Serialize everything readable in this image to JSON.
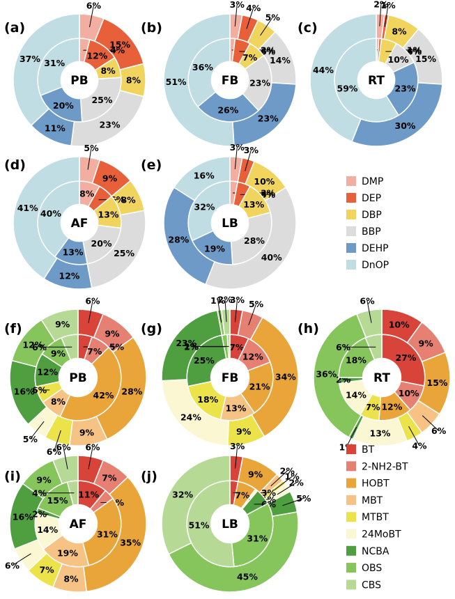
{
  "legends": [
    {
      "items": [
        {
          "name": "DMP",
          "color": "#f2aea0"
        },
        {
          "name": "DEP",
          "color": "#e8603a"
        },
        {
          "name": "DBP",
          "color": "#f1d45e"
        },
        {
          "name": "BBP",
          "color": "#dcdcdc"
        },
        {
          "name": "DEHP",
          "color": "#6e9ac8"
        },
        {
          "name": "DnOP",
          "color": "#bfdde3"
        }
      ]
    },
    {
      "items": [
        {
          "name": "BT",
          "color": "#d9443a"
        },
        {
          "name": "2-NH2-BT",
          "color": "#e68072"
        },
        {
          "name": "HOBT",
          "color": "#e9a53a"
        },
        {
          "name": "MBT",
          "color": "#f6c384"
        },
        {
          "name": "MTBT",
          "color": "#ece24a"
        },
        {
          "name": "24MoBT",
          "color": "#fbf7d3"
        },
        {
          "name": "NCBA",
          "color": "#4f9e3f"
        },
        {
          "name": "OBS",
          "color": "#85c55b"
        },
        {
          "name": "CBS",
          "color": "#b6da96"
        }
      ]
    }
  ],
  "chart_data": [
    {
      "type": "pie",
      "panel": "(a)",
      "center_label": "PB",
      "legend": 0,
      "inner": [
        4,
        12,
        8,
        25,
        20,
        31
      ],
      "outer": [
        6,
        15,
        8,
        23,
        11,
        37
      ],
      "inner_labels": [
        "4%",
        "12%",
        "8%",
        "25%",
        "20%",
        "31%"
      ],
      "outer_labels": [
        "6%",
        "15%",
        "8%",
        "23%",
        "11%",
        "37%"
      ]
    },
    {
      "type": "pie",
      "panel": "(b)",
      "center_label": "FB",
      "legend": 0,
      "inner": [
        2,
        6,
        7,
        23,
        26,
        36
      ],
      "outer": [
        3,
        4,
        5,
        14,
        23,
        51
      ],
      "inner_labels": [
        "2%",
        "6%",
        "7%",
        "23%",
        "26%",
        "36%"
      ],
      "outer_labels": [
        "3%",
        "4%",
        "5%",
        "14%",
        "23%",
        "51%"
      ]
    },
    {
      "type": "pie",
      "panel": "(c)",
      "center_label": "RT",
      "legend": 0,
      "inner": [
        1,
        1,
        6,
        10,
        23,
        59
      ],
      "outer": [
        2,
        1,
        8,
        15,
        30,
        44
      ],
      "inner_labels": [
        "1%",
        "1%",
        "6%",
        "10%",
        "23%",
        "59%"
      ],
      "outer_labels": [
        "2%",
        "1%",
        "8%",
        "15%",
        "30%",
        "44%"
      ]
    },
    {
      "type": "pie",
      "panel": "(d)",
      "center_label": "AF",
      "legend": 0,
      "inner": [
        8,
        6,
        13,
        20,
        13,
        40
      ],
      "outer": [
        5,
        9,
        8,
        25,
        12,
        41
      ],
      "inner_labels": [
        "8%",
        "6%",
        "13%",
        "20%",
        "13%",
        "40%"
      ],
      "outer_labels": [
        "5%",
        "9%",
        "8%",
        "25%",
        "12%",
        "41%"
      ]
    },
    {
      "type": "pie",
      "panel": "(e)",
      "center_label": "LB",
      "legend": 0,
      "inner": [
        3,
        5,
        13,
        28,
        19,
        32
      ],
      "outer": [
        3,
        3,
        10,
        40,
        28,
        16
      ],
      "inner_labels": [
        "3%",
        "5%",
        "13%",
        "28%",
        "19%",
        "32%"
      ],
      "outer_labels": [
        "3%",
        "3%",
        "10%",
        "40%",
        "28%",
        "16%"
      ]
    },
    {
      "type": "pie",
      "panel": "(f)",
      "center_label": "PB",
      "legend": 1,
      "inner": [
        5,
        7,
        42,
        8,
        6,
        0,
        12,
        9,
        6
      ],
      "outer": [
        6,
        9,
        28,
        9,
        6,
        5,
        16,
        12,
        9
      ],
      "inner_labels": [
        "5%",
        "7%",
        "42%",
        "8%",
        "6%",
        "",
        "12%",
        "9%",
        "6%"
      ],
      "outer_labels": [
        "6%",
        "9%",
        "28%",
        "9%",
        "6%",
        "5%",
        "16%",
        "12%",
        "9%"
      ]
    },
    {
      "type": "pie",
      "panel": "(g)",
      "center_label": "FB",
      "legend": 1,
      "inner": [
        7,
        12,
        21,
        13,
        18,
        0,
        25,
        2,
        1
      ],
      "outer": [
        3,
        5,
        34,
        0,
        9,
        24,
        23,
        1,
        2
      ],
      "inner_labels": [
        "7%",
        "12%",
        "21%",
        "13%",
        "18%",
        "",
        "25%",
        "2%",
        "1%"
      ],
      "outer_labels": [
        "3%",
        "5%",
        "34%",
        "",
        "9%",
        "24%",
        "23%",
        "1%",
        "2%"
      ]
    },
    {
      "type": "pie",
      "panel": "(h)",
      "center_label": "RT",
      "legend": 1,
      "inner": [
        27,
        10,
        12,
        0,
        7,
        14,
        2,
        18,
        6
      ],
      "outer": [
        10,
        9,
        15,
        6,
        4,
        13,
        1,
        36,
        6
      ],
      "inner_labels": [
        "27%",
        "10%",
        "12%",
        "",
        "7%",
        "14%",
        "2%",
        "18%",
        "6%"
      ],
      "outer_labels": [
        "10%",
        "9%",
        "15%",
        "6%",
        "4%",
        "13%",
        "1%",
        "36%",
        "6%"
      ]
    },
    {
      "type": "pie",
      "panel": "(i)",
      "center_label": "AF",
      "legend": 1,
      "inner": [
        11,
        4,
        31,
        19,
        0,
        14,
        2,
        15,
        4
      ],
      "outer": [
        6,
        7,
        35,
        8,
        7,
        6,
        16,
        9,
        6
      ],
      "inner_labels": [
        "11%",
        "4%",
        "31%",
        "19%",
        "",
        "14%",
        "2%",
        "15%",
        "4%"
      ],
      "outer_labels": [
        "6%",
        "7%",
        "35%",
        "8%",
        "7%",
        "6%",
        "16%",
        "9%",
        "6%"
      ]
    },
    {
      "type": "pie",
      "panel": "(j)",
      "center_label": "LB",
      "legend": 1,
      "inner": [
        3,
        0,
        7,
        0,
        0,
        1,
        6,
        31,
        51
      ],
      "outer": [
        3,
        0,
        9,
        2,
        1,
        2,
        5,
        45,
        32
      ],
      "inner_labels": [
        "3%",
        "",
        "7%",
        "",
        "",
        "1%",
        "6%",
        "31%",
        "51%"
      ],
      "outer_labels": [
        "3%",
        "",
        "9%",
        "2%",
        "1%",
        "2%",
        "5%",
        "45%",
        "32%"
      ]
    }
  ]
}
